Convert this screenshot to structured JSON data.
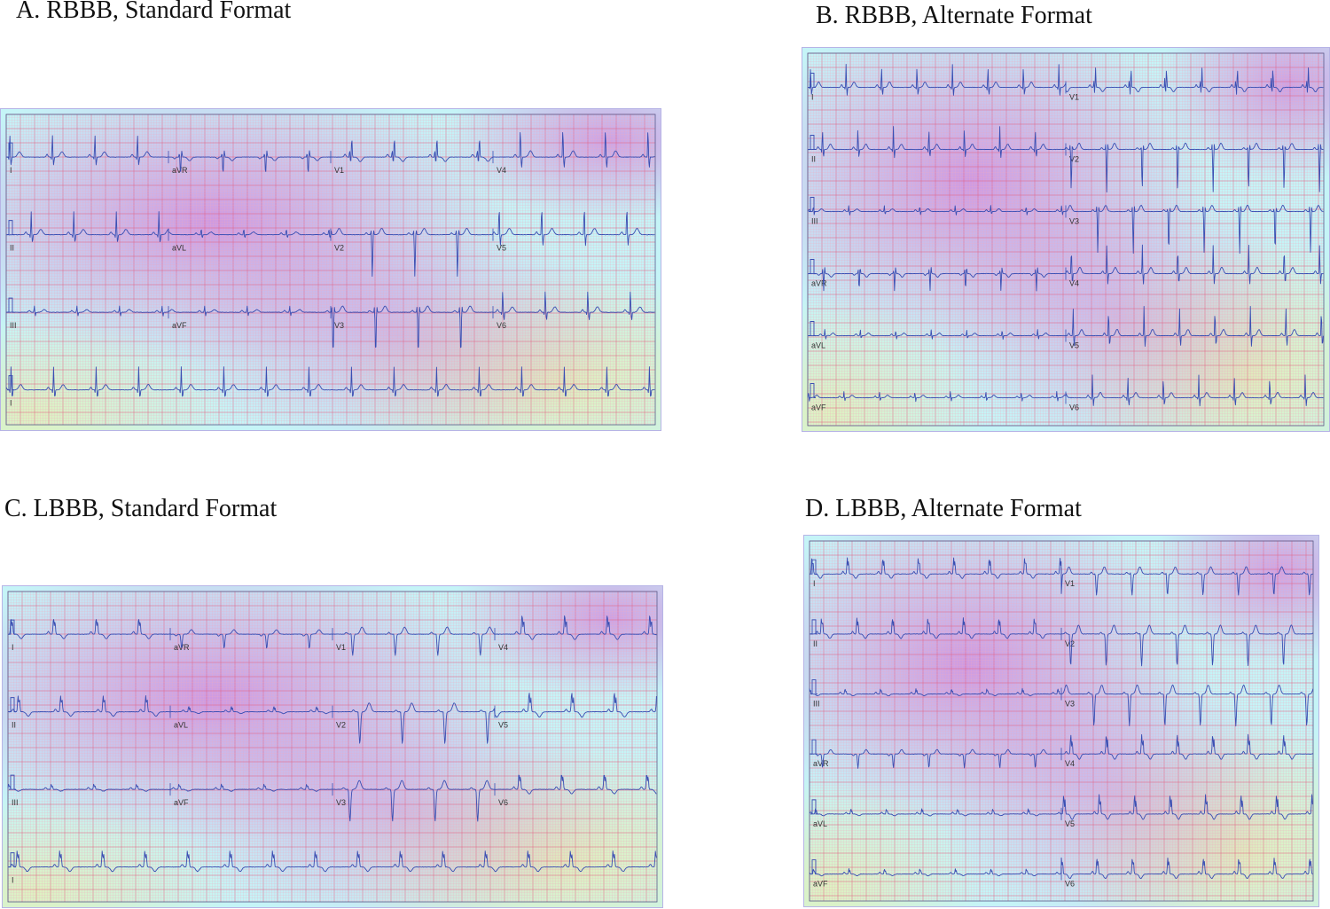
{
  "colors": {
    "grid_minor": "#f3a9bf",
    "grid_major": "#e46587",
    "trace": "#3a4fb3",
    "heat_magenta": "#d64fd0",
    "heat_cyan": "#7fe7ee",
    "heat_yellow": "#f7ee8a",
    "frame_border": "#b7b4e6"
  },
  "panels": [
    {
      "id": "A",
      "title": "A. RBBB, Standard Format",
      "format": "standard",
      "pattern": "rbbb",
      "lead_rows": [
        [
          "I",
          "aVR",
          "V1",
          "V4"
        ],
        [
          "II",
          "aVL",
          "V2",
          "V5"
        ],
        [
          "III",
          "aVF",
          "V3",
          "V6"
        ],
        [
          "I"
        ]
      ]
    },
    {
      "id": "B",
      "title": "B. RBBB, Alternate Format",
      "format": "alternate",
      "pattern": "rbbb",
      "lead_rows": [
        [
          "I",
          "V1"
        ],
        [
          "II",
          "V2"
        ],
        [
          "III",
          "V3"
        ],
        [
          "aVR",
          "V4"
        ],
        [
          "aVL",
          "V5"
        ],
        [
          "aVF",
          "V6"
        ]
      ]
    },
    {
      "id": "C",
      "title": "C. LBBB, Standard Format",
      "format": "standard",
      "pattern": "lbbb",
      "lead_rows": [
        [
          "I",
          "aVR",
          "V1",
          "V4"
        ],
        [
          "II",
          "aVL",
          "V2",
          "V5"
        ],
        [
          "III",
          "aVF",
          "V3",
          "V6"
        ],
        [
          "I"
        ]
      ]
    },
    {
      "id": "D",
      "title": "D. LBBB, Alternate Format",
      "format": "alternate",
      "pattern": "lbbb",
      "lead_rows": [
        [
          "I",
          "V1"
        ],
        [
          "II",
          "V2"
        ],
        [
          "III",
          "V3"
        ],
        [
          "aVR",
          "V4"
        ],
        [
          "aVL",
          "V5"
        ],
        [
          "aVF",
          "V6"
        ]
      ]
    }
  ]
}
